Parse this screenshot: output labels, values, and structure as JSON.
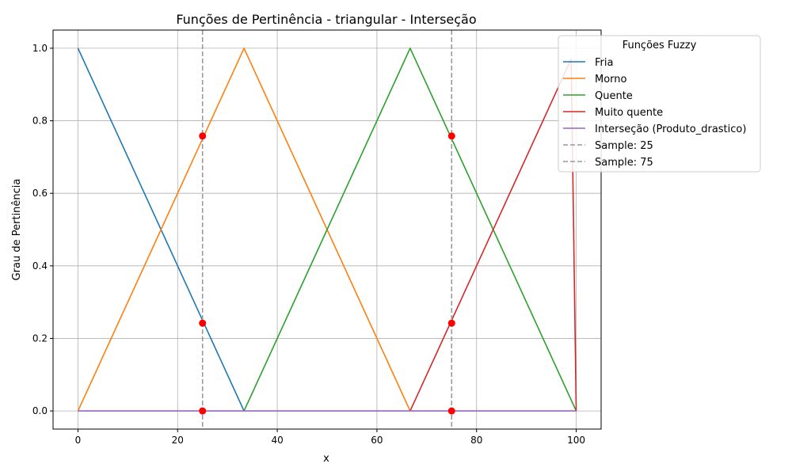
{
  "chart_data": {
    "type": "line",
    "title": "Funções de Pertinência - triangular - Interseção",
    "xlabel": "x",
    "ylabel": "Grau de Pertinência",
    "xlim": [
      -5,
      105
    ],
    "ylim": [
      -0.05,
      1.05
    ],
    "x_ticks": [
      0,
      20,
      40,
      60,
      80,
      100
    ],
    "y_ticks": [
      0.0,
      0.2,
      0.4,
      0.6,
      0.8,
      1.0
    ],
    "x_tick_labels": [
      "0",
      "20",
      "40",
      "60",
      "80",
      "100"
    ],
    "y_tick_labels": [
      "0.0",
      "0.2",
      "0.4",
      "0.6",
      "0.8",
      "1.0"
    ],
    "grid": true,
    "legend": {
      "title": "Funções Fuzzy",
      "placement": "top-right, outside plot area"
    },
    "series": [
      {
        "name": "Fria",
        "color": "#1f77b4",
        "x": [
          0,
          33.33
        ],
        "y": [
          1.0,
          0.0
        ]
      },
      {
        "name": "Morno",
        "color": "#ff7f0e",
        "x": [
          0,
          33.33,
          66.67
        ],
        "y": [
          0.0,
          1.0,
          0.0
        ]
      },
      {
        "name": "Quente",
        "color": "#2ca02c",
        "x": [
          33.33,
          66.67,
          100
        ],
        "y": [
          0.0,
          1.0,
          0.0
        ]
      },
      {
        "name": "Muito quente",
        "color": "#d62728",
        "x": [
          66.67,
          98.99,
          100
        ],
        "y": [
          0.0,
          0.97,
          0.0
        ]
      },
      {
        "name": "Interseção (Produto_drastico)",
        "color": "#9467bd",
        "x": [
          0,
          100
        ],
        "y": [
          0.0,
          0.0
        ]
      }
    ],
    "samples": [
      {
        "name": "Sample: 25",
        "x": 25,
        "color": "#999999"
      },
      {
        "name": "Sample: 75",
        "x": 75,
        "color": "#999999"
      }
    ],
    "sample_points": [
      {
        "x": 25,
        "y": 0.758
      },
      {
        "x": 25,
        "y": 0.242
      },
      {
        "x": 25,
        "y": 0.0
      },
      {
        "x": 75,
        "y": 0.758
      },
      {
        "x": 75,
        "y": 0.242
      },
      {
        "x": 75,
        "y": 0.0
      }
    ],
    "sample_point_color": "#ff0000"
  }
}
